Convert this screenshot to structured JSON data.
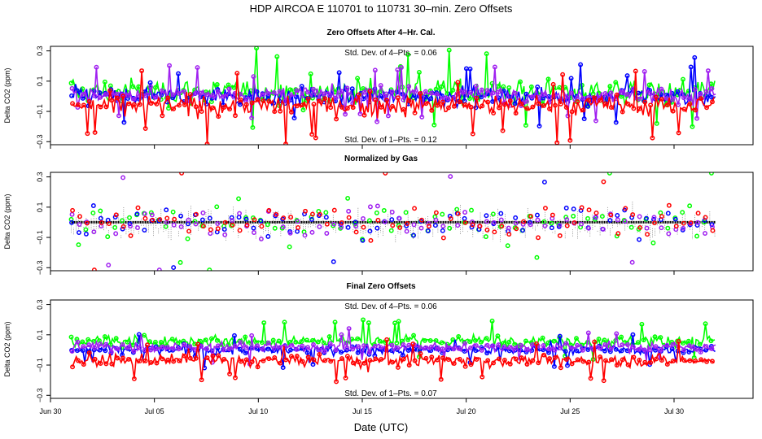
{
  "figure": {
    "title": "HDP    AIRCOA E    110701 to 110731    30–min. Zero Offsets",
    "xlabel": "Date (UTC)"
  },
  "chart_data": [
    {
      "type": "scatter",
      "title": "Zero Offsets After 4–Hr. Cal.",
      "ylabel": "Delta CO2 (ppm)",
      "ylim": [
        -0.32,
        0.33
      ],
      "yticks": [
        -0.3,
        -0.1,
        0.1,
        0.3
      ],
      "ytick_labels": [
        "−0.3",
        "−0.1",
        "0.1",
        "0.3"
      ],
      "annotations": [
        "Std. Dev. of 4–Pts. =  0.06",
        "Std. Dev. of 1–Pts. =  0.12"
      ],
      "series": [
        {
          "color": "#00ff00",
          "center": 0.03,
          "spread": 0.11
        },
        {
          "color": "#0000ff",
          "center": 0.0,
          "spread": 0.08
        },
        {
          "color": "#a020f0",
          "center": 0.01,
          "spread": 0.07
        },
        {
          "color": "#ff0000",
          "center": -0.06,
          "spread": 0.09
        }
      ]
    },
    {
      "type": "scatter",
      "title": "Normalized by Gas",
      "ylabel": "Delta CO2 (ppm)",
      "ylim": [
        -0.32,
        0.33
      ],
      "yticks": [
        -0.3,
        -0.1,
        0.1,
        0.3
      ],
      "ytick_labels": [
        "−0.3",
        "−0.1",
        "0.1",
        "0.3"
      ],
      "annotations": [],
      "mean_line": 0.0,
      "series": [
        {
          "color": "#00ff00",
          "center": 0.0,
          "spread": 0.15
        },
        {
          "color": "#0000ff",
          "center": 0.0,
          "spread": 0.12
        },
        {
          "color": "#a020f0",
          "center": 0.0,
          "spread": 0.12
        },
        {
          "color": "#ff0000",
          "center": 0.0,
          "spread": 0.14
        }
      ]
    },
    {
      "type": "scatter",
      "title": "Final Zero Offsets",
      "ylabel": "Delta CO2 (ppm)",
      "ylim": [
        -0.32,
        0.33
      ],
      "yticks": [
        -0.3,
        -0.1,
        0.1,
        0.3
      ],
      "ytick_labels": [
        "−0.3",
        "−0.1",
        "0.1",
        "0.3"
      ],
      "annotations": [
        "Std. Dev. of 4–Pts. =  0.06",
        "Std. Dev. of 1–Pts. =  0.07"
      ],
      "series": [
        {
          "color": "#00ff00",
          "center": 0.06,
          "spread": 0.05
        },
        {
          "color": "#0000ff",
          "center": 0.0,
          "spread": 0.04
        },
        {
          "color": "#a020f0",
          "center": 0.02,
          "spread": 0.04
        },
        {
          "color": "#ff0000",
          "center": -0.07,
          "spread": 0.05
        }
      ]
    }
  ],
  "x_axis": {
    "range_days": [
      0,
      33.8
    ],
    "tick_values": [
      0,
      5,
      10,
      15,
      20,
      25,
      30
    ],
    "tick_labels": [
      "Jun 30",
      "Jul 05",
      "Jul 10",
      "Jul 15",
      "Jul 20",
      "Jul 25",
      "Jul 30"
    ],
    "data_start_day": 1,
    "data_end_day": 32
  }
}
